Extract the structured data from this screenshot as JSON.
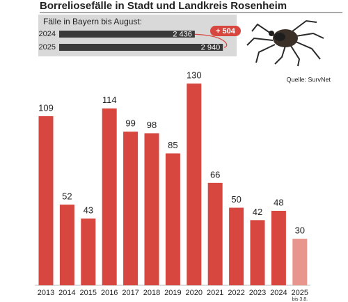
{
  "chart_data": {
    "type": "bar",
    "title": "Borreliosefälle in Stadt und Landkreis Rosenheim",
    "categories": [
      "2013",
      "2014",
      "2015",
      "2016",
      "2017",
      "2018",
      "2019",
      "2020",
      "2021",
      "2022",
      "2023",
      "2024",
      "2025"
    ],
    "category_sublabels": [
      null,
      null,
      null,
      null,
      null,
      null,
      null,
      null,
      null,
      null,
      null,
      null,
      "bis 3.8."
    ],
    "values": [
      109,
      52,
      43,
      114,
      99,
      98,
      85,
      130,
      66,
      50,
      42,
      48,
      30
    ],
    "colors": [
      "#d8473f",
      "#d8473f",
      "#d8473f",
      "#d8473f",
      "#d8473f",
      "#d8473f",
      "#d8473f",
      "#d8473f",
      "#d8473f",
      "#d8473f",
      "#d8473f",
      "#d8473f",
      "#e8958d"
    ],
    "source": "Quelle: SurvNet",
    "inset": {
      "title": "Fälle in Bayern bis August:",
      "categories": [
        "2024",
        "2025"
      ],
      "values": [
        2436,
        2940
      ],
      "value_labels": [
        "2 436",
        "2 940"
      ],
      "color": "#3a3a3a",
      "difference": 504,
      "difference_label": "+ 504",
      "difference_color": "#d8473f"
    }
  }
}
